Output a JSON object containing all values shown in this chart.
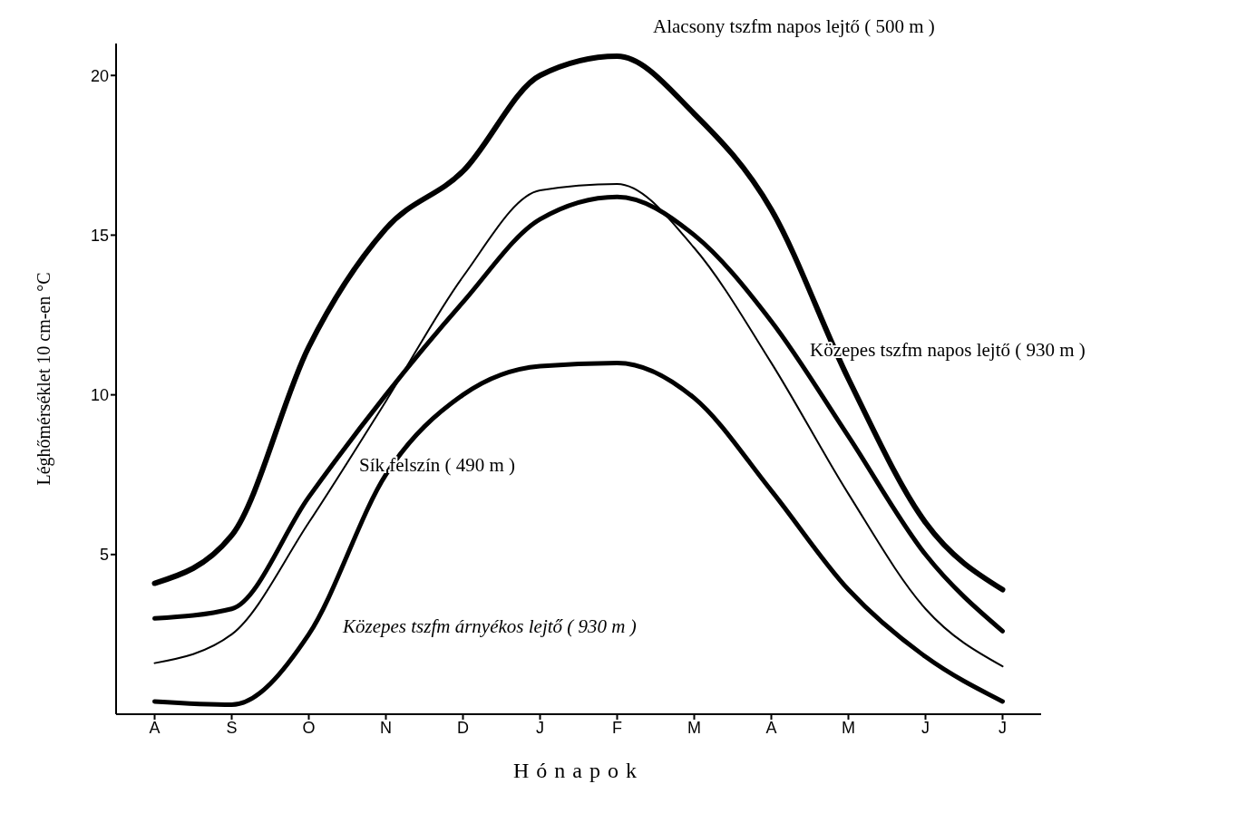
{
  "chart_data": {
    "type": "line",
    "xlabel": "Hónapok",
    "ylabel": "Léghőmérséklet 10 cm-en °C",
    "categories": [
      "A",
      "S",
      "O",
      "N",
      "D",
      "J",
      "F",
      "M",
      "A",
      "M",
      "J",
      "J"
    ],
    "ylim": [
      0,
      21
    ],
    "yticks": [
      5,
      10,
      15,
      20
    ],
    "marker": "none",
    "line_style": "solid",
    "series": [
      {
        "name": "Alacsony tszfm napos lejtő ( 500 m )",
        "color": "#000000",
        "values": [
          4.1,
          5.6,
          11.5,
          15.2,
          17.0,
          20.0,
          20.6,
          18.8,
          15.8,
          10.5,
          6.0,
          3.9
        ]
      },
      {
        "name": "Közepes tszfm napos lejtő ( 930 m )",
        "color": "#000000",
        "values": [
          3.0,
          3.3,
          6.8,
          10.0,
          12.9,
          15.5,
          16.2,
          15.0,
          12.3,
          8.7,
          5.0,
          2.6
        ]
      },
      {
        "name": "Sík felszín ( 490 m )",
        "color": "#000000",
        "values": [
          1.6,
          2.5,
          6.0,
          9.8,
          13.7,
          16.4,
          16.6,
          14.6,
          11.0,
          6.9,
          3.3,
          1.5
        ]
      },
      {
        "name": "Közepes tszfm árnyékos lejtő ( 930 m )",
        "color": "#000000",
        "values": [
          0.4,
          0.3,
          2.5,
          7.5,
          10.0,
          10.9,
          11.0,
          9.9,
          7.0,
          3.9,
          1.8,
          0.4
        ]
      }
    ]
  }
}
